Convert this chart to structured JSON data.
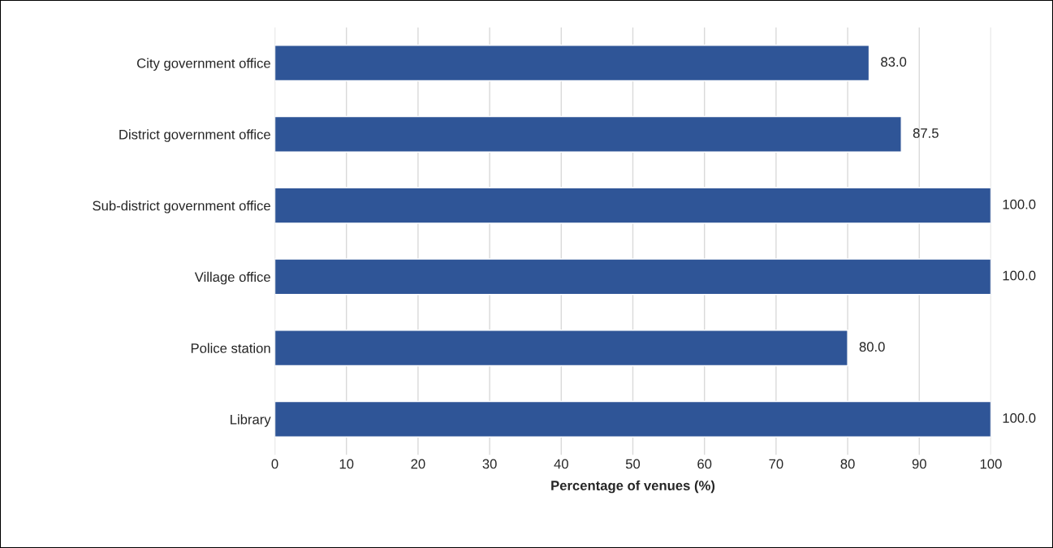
{
  "chart_data": {
    "type": "bar",
    "orientation": "horizontal",
    "xlabel": "Percentage of venues (%)",
    "categories": [
      "City government office",
      "District government office",
      "Sub-district government office",
      "Village office",
      "Police station",
      "Library"
    ],
    "values": [
      83.0,
      87.5,
      100.0,
      100.0,
      80.0,
      100.0
    ],
    "color": "#2f5597",
    "xlim": [
      0,
      100
    ],
    "xticks": [
      0,
      10,
      20,
      30,
      40,
      50,
      60,
      70,
      80,
      90,
      100
    ],
    "value_labels": [
      "83.0",
      "87.5",
      "100.0",
      "100.0",
      "80.0",
      "100.0"
    ],
    "grid": "x",
    "legend": false
  }
}
